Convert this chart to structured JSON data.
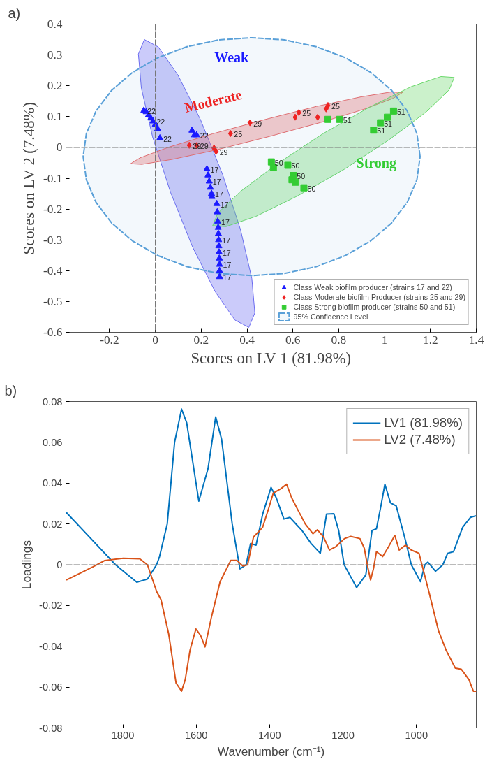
{
  "chart_data": [
    {
      "type": "scatter",
      "xlabel": "Scores on LV 1 (81.98%)",
      "ylabel": "Scores on LV 2 (7.48%)",
      "xlim": [
        -0.39,
        1.4
      ],
      "ylim": [
        -0.6,
        0.4
      ],
      "xticks": [
        -0.2,
        0,
        0.2,
        0.4,
        0.6,
        0.8,
        1,
        1.2,
        1.4
      ],
      "yticks": [
        -0.6,
        -0.5,
        -0.4,
        -0.3,
        -0.2,
        -0.1,
        0,
        0.1,
        0.2,
        0.3,
        0.4
      ],
      "legend": "bottom right",
      "ref_lines": [
        {
          "axis": "x",
          "value": 0
        },
        {
          "axis": "y",
          "value": 0
        }
      ],
      "annotations": [
        "a)",
        "Weak",
        "Moderate",
        "Strong",
        {
          "text": "22",
          "x": -0.05,
          "y": 0.12
        },
        {
          "text": "22",
          "x": -0.01,
          "y": 0.085
        },
        {
          "text": "22",
          "x": 0.02,
          "y": 0.03
        },
        {
          "text": "22",
          "x": 0.18,
          "y": 0.04
        },
        {
          "text": "17",
          "x": 0.225,
          "y": -0.07
        },
        {
          "text": "17",
          "x": 0.235,
          "y": -0.11
        },
        {
          "text": "17",
          "x": 0.245,
          "y": -0.15
        },
        {
          "text": "17",
          "x": 0.268,
          "y": -0.183
        },
        {
          "text": "17",
          "x": 0.272,
          "y": -0.24
        },
        {
          "text": "17",
          "x": 0.276,
          "y": -0.3
        },
        {
          "text": "17",
          "x": 0.278,
          "y": -0.34
        },
        {
          "text": "17",
          "x": 0.28,
          "y": -0.38
        },
        {
          "text": "17",
          "x": 0.28,
          "y": -0.42
        },
        {
          "text": "29",
          "x": 0.148,
          "y": 0.007
        },
        {
          "text": "29",
          "x": 0.18,
          "y": 0.006
        },
        {
          "text": "29",
          "x": 0.265,
          "y": -0.013
        },
        {
          "text": "25",
          "x": 0.328,
          "y": 0.045
        },
        {
          "text": "29",
          "x": 0.413,
          "y": 0.08
        },
        {
          "text": "25",
          "x": 0.626,
          "y": 0.113
        },
        {
          "text": "25",
          "x": 0.753,
          "y": 0.136
        },
        {
          "text": "50",
          "x": 0.506,
          "y": -0.047
        },
        {
          "text": "50",
          "x": 0.578,
          "y": -0.058
        },
        {
          "text": "50",
          "x": 0.602,
          "y": -0.091
        },
        {
          "text": "50",
          "x": 0.648,
          "y": -0.131
        },
        {
          "text": "51",
          "x": 0.804,
          "y": 0.091
        },
        {
          "text": "51",
          "x": 0.952,
          "y": 0.056
        },
        {
          "text": "51",
          "x": 0.982,
          "y": 0.08
        },
        {
          "text": "51",
          "x": 1.039,
          "y": 0.118
        }
      ],
      "series": [
        {
          "type": "area",
          "color": "#6a6af0",
          "x": [
            -0.048,
            0.013,
            0.099,
            0.197,
            0.293,
            0.372,
            0.421,
            0.434,
            0.408,
            0.347,
            0.261,
            0.163,
            0.067,
            -0.012,
            -0.061,
            -0.074,
            -0.048
          ],
          "values": [
            0.35,
            0.326,
            0.234,
            0.09,
            -0.087,
            -0.268,
            -0.426,
            -0.537,
            -0.584,
            -0.56,
            -0.468,
            -0.324,
            -0.147,
            0.034,
            0.192,
            0.303,
            0.35
          ]
        },
        {
          "type": "area",
          "color": "#e86a6a",
          "x": [
            1.078,
            1.029,
            0.897,
            0.703,
            0.475,
            0.249,
            0.059,
            -0.067,
            -0.108,
            -0.059,
            0.073,
            0.267,
            0.495,
            0.721,
            0.911,
            1.037,
            1.078
          ],
          "values": [
            0.178,
            0.18,
            0.164,
            0.133,
            0.09,
            0.044,
            0.001,
            -0.034,
            -0.053,
            -0.055,
            -0.039,
            -0.008,
            0.035,
            0.081,
            0.124,
            0.159,
            0.178
          ]
        },
        {
          "type": "area",
          "color": "#6ad86a",
          "x": [
            1.304,
            1.246,
            1.116,
            0.935,
            0.73,
            0.532,
            0.371,
            0.272,
            0.25,
            0.308,
            0.438,
            0.619,
            0.824,
            1.022,
            1.183,
            1.282,
            1.304
          ],
          "values": [
            0.227,
            0.23,
            0.197,
            0.131,
            0.044,
            -0.053,
            -0.143,
            -0.214,
            -0.254,
            -0.257,
            -0.224,
            -0.158,
            -0.071,
            0.026,
            0.116,
            0.187,
            0.227
          ]
        },
        {
          "type": "scatter",
          "name": "Class Weak biofilm producer (strains 17 and 22)",
          "color": "#1a1aff",
          "marker": "triangle",
          "x": [
            -0.05,
            -0.04,
            -0.03,
            -0.02,
            -0.01,
            0.0,
            0.01,
            0.02,
            0.16,
            0.17,
            0.18,
            0.225,
            0.23,
            0.235,
            0.24,
            0.245,
            0.247,
            0.268,
            0.27,
            0.272,
            0.274,
            0.275,
            0.276,
            0.277,
            0.278,
            0.279,
            0.28,
            0.28,
            0.28
          ],
          "values": [
            0.12,
            0.115,
            0.105,
            0.095,
            0.085,
            0.075,
            0.06,
            0.03,
            0.055,
            0.04,
            0.04,
            -0.07,
            -0.09,
            -0.11,
            -0.13,
            -0.15,
            -0.16,
            -0.183,
            -0.21,
            -0.24,
            -0.26,
            -0.28,
            -0.3,
            -0.32,
            -0.34,
            -0.36,
            -0.38,
            -0.4,
            -0.42
          ]
        },
        {
          "type": "scatter",
          "name": "Class Moderate biofilm Producer (strains 25 and 29)",
          "color": "#ee2222",
          "marker": "diamond",
          "x": [
            0.148,
            0.18,
            0.256,
            0.265,
            0.328,
            0.413,
            0.61,
            0.626,
            0.708,
            0.745,
            0.753
          ],
          "values": [
            0.007,
            0.006,
            -0.002,
            -0.013,
            0.045,
            0.08,
            0.098,
            0.113,
            0.098,
            0.125,
            0.136
          ]
        },
        {
          "type": "scatter",
          "name": "Class Strong biofilm producer (strains 50 and 51)",
          "color": "#33cc33",
          "marker": "square",
          "x": [
            0.506,
            0.515,
            0.578,
            0.602,
            0.596,
            0.611,
            0.648,
            0.753,
            0.804,
            0.952,
            0.982,
            1.012,
            1.039
          ],
          "values": [
            -0.047,
            -0.065,
            -0.058,
            -0.091,
            -0.105,
            -0.113,
            -0.131,
            0.091,
            0.091,
            0.056,
            0.08,
            0.098,
            0.118
          ]
        },
        {
          "type": "area",
          "name": "95% Confidence Level",
          "color": "#5aa0d8",
          "line_style": "dashed",
          "x": [
            1.155,
            1.141,
            1.099,
            1.031,
            0.94,
            0.829,
            0.702,
            0.563,
            0.42,
            0.277,
            0.138,
            0.011,
            -0.1,
            -0.191,
            -0.259,
            -0.301,
            -0.315,
            -0.301,
            -0.259,
            -0.191,
            -0.1,
            0.011,
            0.138,
            0.277,
            0.42,
            0.563,
            0.702,
            0.829,
            0.94,
            1.031,
            1.099,
            1.141,
            1.155
          ],
          "values": [
            -0.03,
            0.045,
            0.118,
            0.185,
            0.243,
            0.291,
            0.327,
            0.349,
            0.356,
            0.349,
            0.327,
            0.291,
            0.243,
            0.185,
            0.118,
            0.045,
            -0.03,
            -0.105,
            -0.178,
            -0.245,
            -0.303,
            -0.351,
            -0.387,
            -0.409,
            -0.416,
            -0.409,
            -0.387,
            -0.351,
            -0.303,
            -0.245,
            -0.178,
            -0.105,
            -0.03
          ]
        }
      ]
    },
    {
      "type": "line",
      "xlabel": "Wavenumber (cm⁻¹)",
      "ylabel": "Loadings",
      "xlim": [
        1955,
        837
      ],
      "ylim": [
        -0.08,
        0.08
      ],
      "xticks": [
        1800,
        1600,
        1400,
        1200,
        1000
      ],
      "yticks": [
        -0.08,
        -0.06,
        -0.04,
        -0.02,
        0,
        0.02,
        0.04,
        0.06,
        0.08
      ],
      "legend": "top right",
      "ref_lines": [
        {
          "axis": "y",
          "value": 0
        }
      ],
      "annotations": [
        "b)"
      ],
      "series": [
        {
          "name": "LV1 (81.98%)",
          "color": "#0072bd",
          "x": [
            1954,
            1820,
            1762,
            1733,
            1708,
            1700,
            1679,
            1659,
            1640,
            1626,
            1593,
            1568,
            1547,
            1531,
            1502,
            1481,
            1464,
            1452,
            1437,
            1419,
            1396,
            1382,
            1361,
            1345,
            1312,
            1287,
            1262,
            1245,
            1225,
            1212,
            1197,
            1163,
            1138,
            1134,
            1121,
            1109,
            1096,
            1086,
            1071,
            1055,
            1030,
            1014,
            989,
            977,
            969,
            948,
            928,
            915,
            899,
            874,
            853,
            838
          ],
          "values": [
            0.0256,
            0,
            -0.0086,
            -0.007,
            0,
            0.004,
            0.02,
            0.06,
            0.0763,
            0.0696,
            0.0312,
            0.047,
            0.0725,
            0.0616,
            0.02,
            -0.002,
            0,
            0.0104,
            0.0096,
            0.0248,
            0.0379,
            0.0328,
            0.0224,
            0.0232,
            0.0168,
            0.0104,
            0.0056,
            0.0248,
            0.025,
            0.0168,
            0,
            -0.0112,
            -0.005,
            0,
            0.0168,
            0.0176,
            0.0296,
            0.0395,
            0.0304,
            0.0288,
            0.012,
            0,
            -0.0083,
            0,
            0.0013,
            -0.0032,
            0,
            0.0056,
            0.0064,
            0.0184,
            0.0232,
            0.024
          ]
        },
        {
          "name": "LV2 (7.48%)",
          "color": "#d95319",
          "x": [
            1954,
            1882,
            1849,
            1799,
            1754,
            1733,
            1708,
            1696,
            1675,
            1655,
            1640,
            1630,
            1617,
            1601,
            1588,
            1576,
            1559,
            1535,
            1506,
            1489,
            1473,
            1460,
            1444,
            1431,
            1419,
            1402,
            1390,
            1369,
            1354,
            1340,
            1324,
            1303,
            1282,
            1270,
            1253,
            1237,
            1220,
            1196,
            1179,
            1154,
            1142,
            1134,
            1125,
            1117,
            1109,
            1092,
            1076,
            1059,
            1047,
            1030,
            1014,
            993,
            985,
            964,
            940,
            919,
            894,
            878,
            857,
            845,
            837
          ],
          "values": [
            -0.0075,
            -0.0011,
            0.0021,
            0.0032,
            0.0029,
            0,
            -0.0131,
            -0.0171,
            -0.034,
            -0.058,
            -0.062,
            -0.0563,
            -0.042,
            -0.0315,
            -0.0347,
            -0.0403,
            -0.026,
            -0.0083,
            0.0021,
            0.0021,
            -0.0006,
            0,
            0.0136,
            0.016,
            0.0184,
            0.028,
            0.0352,
            0.0373,
            0.0395,
            0.0328,
            0.0272,
            0.02,
            0.0152,
            0.0171,
            0.0136,
            0.0072,
            0.0088,
            0.0128,
            0.0139,
            0.0128,
            0.008,
            0,
            -0.0075,
            -0.0019,
            0.0064,
            0.004,
            0.0088,
            0.0144,
            0.0072,
            0.0096,
            0.0072,
            0.0056,
            0,
            -0.0147,
            -0.0323,
            -0.042,
            -0.0507,
            -0.0512,
            -0.0563,
            -0.062,
            -0.062
          ]
        }
      ]
    }
  ]
}
